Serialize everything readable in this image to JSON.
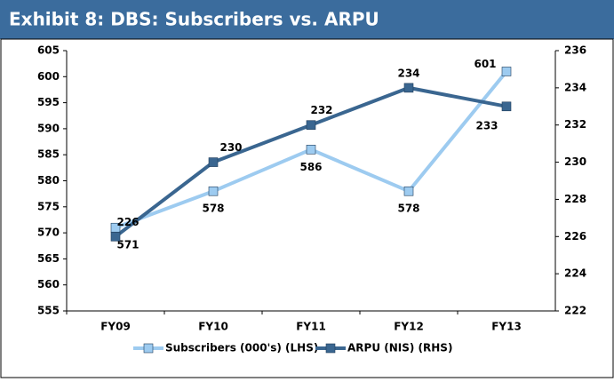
{
  "chart_data": {
    "type": "line",
    "title": "Exhibit 8: DBS: Subscribers vs. ARPU",
    "categories": [
      "FY09",
      "FY10",
      "FY11",
      "FY12",
      "FY13"
    ],
    "series": [
      {
        "name": "Subscribers (000's) (LHS)",
        "color": "#9dcbf0",
        "values": [
          571,
          578,
          586,
          578,
          601
        ]
      },
      {
        "name": "ARPU (NIS) (RHS)",
        "color": "#3a6690",
        "axis": "y2",
        "values": [
          226,
          230,
          232,
          234,
          233
        ]
      }
    ],
    "ylim": [
      555,
      605
    ],
    "yticks": [
      555,
      560,
      565,
      570,
      575,
      580,
      585,
      590,
      595,
      600,
      605
    ],
    "y2lim": [
      222,
      236
    ],
    "y2ticks": [
      222,
      224,
      226,
      228,
      230,
      232,
      234,
      236
    ],
    "legend": "bottom"
  }
}
